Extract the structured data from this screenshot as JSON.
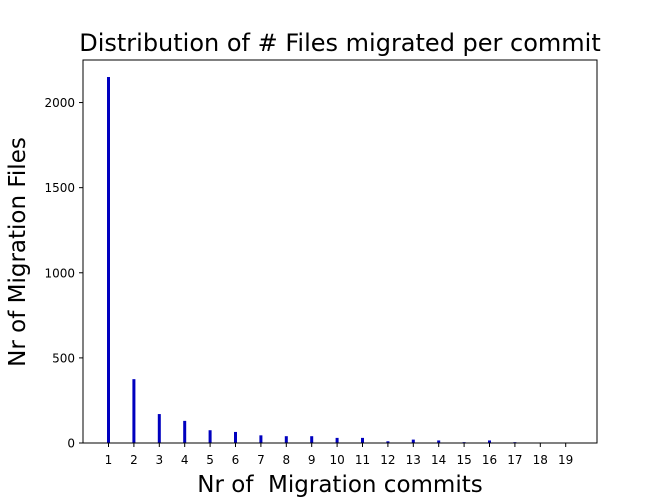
{
  "chart_data": {
    "type": "bar",
    "title": "Distribution of # Files migrated per commit",
    "xlabel": "Nr of  Migration commits",
    "ylabel": "Nr of Migration Files",
    "categories": [
      "1",
      "2",
      "3",
      "4",
      "5",
      "6",
      "7",
      "8",
      "9",
      "10",
      "11",
      "12",
      "13",
      "14",
      "15",
      "16",
      "17",
      "18",
      "19"
    ],
    "values": [
      2150,
      375,
      170,
      130,
      75,
      65,
      45,
      40,
      40,
      30,
      30,
      10,
      20,
      15,
      5,
      15,
      5,
      3,
      3
    ],
    "ylim": [
      0,
      2250
    ],
    "yticks": [
      0,
      500,
      1000,
      1500,
      2000
    ],
    "grid": false,
    "bar_color": "#0000bf"
  }
}
